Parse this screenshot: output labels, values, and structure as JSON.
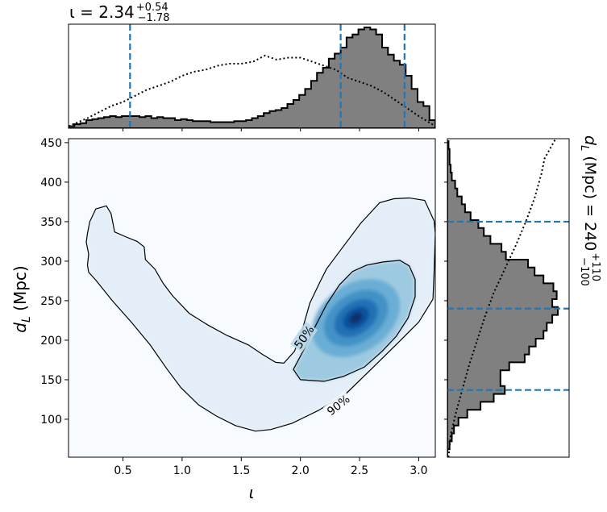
{
  "chart_data": [
    {
      "type": "heatmap",
      "panel": "joint",
      "xlabel": "ι",
      "ylabel": "d_L (Mpc)",
      "xlim": [
        0.04,
        3.14
      ],
      "ylim": [
        52,
        455
      ],
      "x_ticks": [
        "0.5",
        "1.0",
        "1.5",
        "2.0",
        "2.5",
        "3.0"
      ],
      "y_ticks": [
        "100",
        "150",
        "200",
        "250",
        "300",
        "350",
        "400",
        "450"
      ],
      "x_tick_values": [
        0.5,
        1.0,
        1.5,
        2.0,
        2.5,
        3.0
      ],
      "y_tick_values": [
        100,
        150,
        200,
        250,
        300,
        350,
        400,
        450
      ],
      "colormap": "Blues",
      "density_peak": {
        "x": 2.47,
        "y": 228
      },
      "contours": [
        {
          "label": "90%",
          "label_at": [
            2.32,
            118
          ],
          "path": [
            [
              0.27,
              366
            ],
            [
              0.36,
              370
            ],
            [
              0.4,
              360
            ],
            [
              0.43,
              337
            ],
            [
              0.52,
              331
            ],
            [
              0.62,
              325
            ],
            [
              0.68,
              318
            ],
            [
              0.69,
              302
            ],
            [
              0.77,
              290
            ],
            [
              0.84,
              272
            ],
            [
              0.92,
              256
            ],
            [
              1.06,
              234
            ],
            [
              1.22,
              219
            ],
            [
              1.38,
              206
            ],
            [
              1.56,
              194
            ],
            [
              1.68,
              182
            ],
            [
              1.79,
              172
            ],
            [
              1.86,
              171
            ],
            [
              1.95,
              186
            ],
            [
              2.01,
              210
            ],
            [
              2.08,
              247
            ],
            [
              2.17,
              275
            ],
            [
              2.22,
              290
            ],
            [
              2.35,
              316
            ],
            [
              2.51,
              348
            ],
            [
              2.67,
              374
            ],
            [
              2.79,
              379
            ],
            [
              2.92,
              380
            ],
            [
              3.05,
              377
            ],
            [
              3.13,
              351
            ],
            [
              3.14,
              335
            ],
            [
              3.13,
              286
            ],
            [
              3.12,
              252
            ],
            [
              3.0,
              223
            ],
            [
              2.84,
              199
            ],
            [
              2.61,
              165
            ],
            [
              2.39,
              133
            ],
            [
              2.15,
              111
            ],
            [
              1.93,
              95
            ],
            [
              1.75,
              87
            ],
            [
              1.62,
              85
            ],
            [
              1.45,
              92
            ],
            [
              1.29,
              104
            ],
            [
              1.14,
              118
            ],
            [
              0.99,
              140
            ],
            [
              0.87,
              164
            ],
            [
              0.73,
              194
            ],
            [
              0.57,
              223
            ],
            [
              0.41,
              250
            ],
            [
              0.27,
              276
            ],
            [
              0.21,
              286
            ],
            [
              0.2,
              295
            ],
            [
              0.21,
              309
            ],
            [
              0.19,
              324
            ],
            [
              0.2,
              335
            ],
            [
              0.22,
              350
            ],
            [
              0.27,
              366
            ]
          ]
        },
        {
          "label": "50%",
          "label_at": [
            2.03,
            204
          ],
          "path": [
            [
              2.04,
              191
            ],
            [
              2.12,
              216
            ],
            [
              2.22,
              245
            ],
            [
              2.33,
              270
            ],
            [
              2.44,
              287
            ],
            [
              2.56,
              295
            ],
            [
              2.7,
              299
            ],
            [
              2.84,
              301
            ],
            [
              2.92,
              294
            ],
            [
              2.97,
              277
            ],
            [
              2.97,
              255
            ],
            [
              2.91,
              228
            ],
            [
              2.81,
              205
            ],
            [
              2.69,
              186
            ],
            [
              2.54,
              166
            ],
            [
              2.36,
              154
            ],
            [
              2.2,
              148
            ],
            [
              2.0,
              150
            ],
            [
              1.94,
              163
            ],
            [
              2.04,
              191
            ]
          ]
        }
      ]
    },
    {
      "type": "area",
      "panel": "top-marginal",
      "title": "ι = 2.34",
      "title_sup": "+0.54",
      "title_sub": "−1.78",
      "xlim": [
        0.04,
        3.14
      ],
      "posterior_step": {
        "x": [
          0.04,
          0.09,
          0.14,
          0.19,
          0.24,
          0.29,
          0.34,
          0.39,
          0.44,
          0.49,
          0.54,
          0.59,
          0.64,
          0.69,
          0.74,
          0.79,
          0.84,
          0.89,
          0.94,
          0.99,
          1.04,
          1.09,
          1.14,
          1.19,
          1.24,
          1.29,
          1.34,
          1.39,
          1.44,
          1.49,
          1.54,
          1.59,
          1.64,
          1.69,
          1.74,
          1.79,
          1.84,
          1.89,
          1.94,
          1.99,
          2.04,
          2.09,
          2.14,
          2.19,
          2.24,
          2.29,
          2.34,
          2.39,
          2.44,
          2.49,
          2.54,
          2.59,
          2.64,
          2.69,
          2.74,
          2.79,
          2.84,
          2.89,
          2.94,
          2.99,
          3.04,
          3.09,
          3.14
        ],
        "values": [
          0.02,
          0.04,
          0.05,
          0.08,
          0.09,
          0.1,
          0.11,
          0.12,
          0.11,
          0.12,
          0.12,
          0.12,
          0.11,
          0.12,
          0.1,
          0.11,
          0.1,
          0.1,
          0.08,
          0.09,
          0.08,
          0.07,
          0.07,
          0.07,
          0.06,
          0.06,
          0.06,
          0.06,
          0.07,
          0.07,
          0.08,
          0.1,
          0.12,
          0.15,
          0.17,
          0.18,
          0.2,
          0.24,
          0.28,
          0.33,
          0.39,
          0.47,
          0.55,
          0.6,
          0.69,
          0.74,
          0.8,
          0.9,
          0.93,
          0.98,
          1.0,
          0.98,
          0.93,
          0.8,
          0.73,
          0.67,
          0.63,
          0.52,
          0.39,
          0.26,
          0.22,
          0.08,
          0.03
        ]
      },
      "prior_dotted": {
        "x": [
          0.04,
          0.1,
          0.2,
          0.3,
          0.4,
          0.5,
          0.6,
          0.7,
          0.8,
          0.9,
          1.0,
          1.1,
          1.2,
          1.3,
          1.4,
          1.5,
          1.6,
          1.7,
          1.8,
          1.9,
          2.0,
          2.1,
          2.2,
          2.3,
          2.4,
          2.5,
          2.6,
          2.7,
          2.8,
          2.9,
          3.0,
          3.14
        ],
        "values": [
          0.02,
          0.05,
          0.1,
          0.16,
          0.22,
          0.26,
          0.32,
          0.38,
          0.42,
          0.46,
          0.52,
          0.56,
          0.58,
          0.62,
          0.64,
          0.64,
          0.66,
          0.72,
          0.68,
          0.7,
          0.7,
          0.66,
          0.62,
          0.58,
          0.5,
          0.46,
          0.42,
          0.36,
          0.28,
          0.2,
          0.12,
          0.02
        ]
      },
      "credible_lines": [
        0.56,
        2.34,
        2.88
      ],
      "line_color": "#1f77b4",
      "fill_color": "#808080"
    },
    {
      "type": "area",
      "panel": "right-marginal",
      "title": "d_L (Mpc) = 240",
      "title_sup": "+110",
      "title_sub": "−100",
      "ylim": [
        52,
        455
      ],
      "posterior_step": {
        "y": [
          52,
          62,
          72,
          82,
          92,
          102,
          112,
          122,
          132,
          142,
          152,
          162,
          172,
          182,
          192,
          202,
          212,
          222,
          232,
          242,
          252,
          262,
          272,
          282,
          292,
          302,
          312,
          322,
          332,
          342,
          352,
          362,
          372,
          382,
          392,
          402,
          412,
          422,
          432,
          442,
          452
        ],
        "values": [
          0.0,
          0.02,
          0.04,
          0.06,
          0.1,
          0.18,
          0.3,
          0.42,
          0.52,
          0.48,
          0.48,
          0.56,
          0.7,
          0.74,
          0.8,
          0.87,
          0.9,
          0.95,
          1.0,
          0.95,
          0.99,
          0.96,
          0.87,
          0.79,
          0.73,
          0.53,
          0.49,
          0.39,
          0.33,
          0.28,
          0.21,
          0.16,
          0.13,
          0.09,
          0.07,
          0.04,
          0.03,
          0.02,
          0.02,
          0.01,
          0.01
        ]
      },
      "prior_dotted": {
        "y": [
          52,
          80,
          110,
          140,
          170,
          200,
          230,
          260,
          290,
          320,
          350,
          380,
          410,
          430,
          455
        ],
        "values": [
          0.01,
          0.03,
          0.08,
          0.14,
          0.2,
          0.27,
          0.34,
          0.42,
          0.52,
          0.62,
          0.71,
          0.79,
          0.85,
          0.88,
          0.98
        ]
      },
      "credible_lines": [
        137,
        240,
        350
      ],
      "line_color": "#1f77b4",
      "fill_color": "#808080"
    }
  ]
}
